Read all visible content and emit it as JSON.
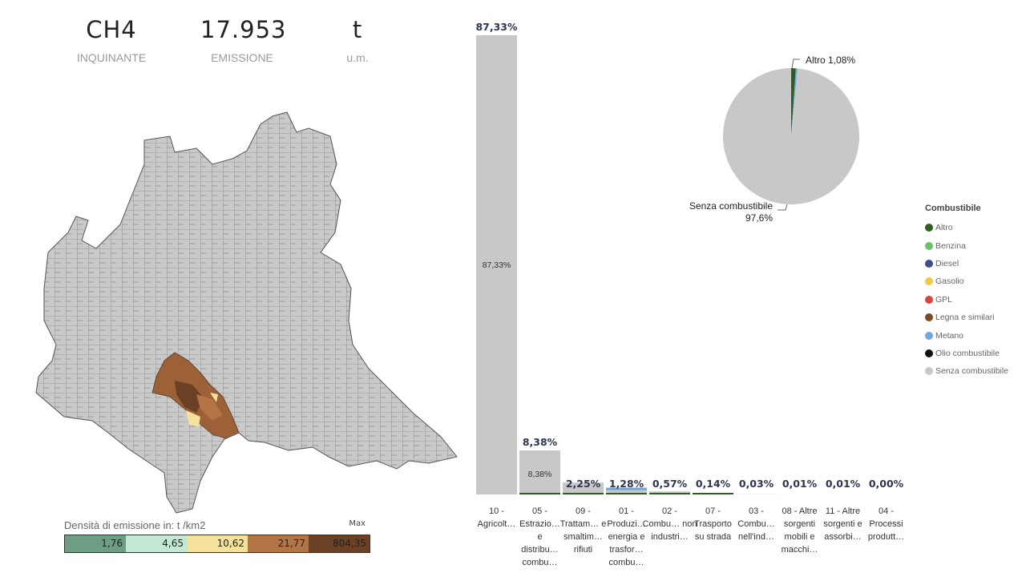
{
  "kpis": {
    "pollutant": {
      "value": "CH4",
      "label": "INQUINANTE"
    },
    "emission": {
      "value": "17.953",
      "label": "EMISSIONE"
    },
    "unit": {
      "value": "t",
      "label": "u.m."
    }
  },
  "map_legend": {
    "title": "Densità di emissione in:  t /km2",
    "max_label": "Max",
    "classes": [
      {
        "value": "1,76",
        "color": "#6d9e83"
      },
      {
        "value": "4,65",
        "color": "#c4e8d4"
      },
      {
        "value": "10,62",
        "color": "#f4e19c"
      },
      {
        "value": "21,77",
        "color": "#b47546"
      },
      {
        "value": "804,35",
        "color": "#6b4126"
      }
    ]
  },
  "chart_data": [
    {
      "type": "bar",
      "categories": [
        "10 - Agricolt…",
        "05 - Estrazio… e distribu… combu…",
        "09 - Trattam… e smaltim… rifiuti",
        "01 - Produzi… energia e trasfor… combu…",
        "02 - Combu… non industri…",
        "07 - Trasporto su strada",
        "03 - Combu… nell'ind…",
        "08 - Altre sorgenti mobili e macchi…",
        "11 - Altre sorgenti e assorbi…",
        "04 - Processi produtt…"
      ],
      "values": [
        87.33,
        8.38,
        2.25,
        1.28,
        0.57,
        0.14,
        0.03,
        0.01,
        0.01,
        0.0
      ],
      "data_labels": [
        "87,33%",
        "8,38%",
        "2,25%",
        "1,28%",
        "0,57%",
        "0,14%",
        "0,03%",
        "0,01%",
        "0,01%",
        "0,00%"
      ],
      "inner_labels": [
        "87,33%",
        "8,38%",
        "",
        "",
        "",
        "",
        "",
        "",
        "",
        ""
      ],
      "ylim": [
        0,
        87.33
      ],
      "grid": false
    },
    {
      "type": "pie",
      "labels": [
        "Altro",
        "Metano",
        "Senza combustibile"
      ],
      "values": [
        1.08,
        0.4,
        97.6
      ],
      "colors": [
        "#2e5e24",
        "#6fa8dc",
        "#c8c8c8"
      ],
      "data_labels": [
        {
          "text": "Altro 1,08%"
        },
        {
          "text": "Senza combustibile"
        },
        {
          "text": "97,6%"
        }
      ]
    }
  ],
  "fuel_legend": {
    "title": "Combustibile",
    "items": [
      {
        "label": "Altro",
        "color": "#2e5e24"
      },
      {
        "label": "Benzina",
        "color": "#6abf69"
      },
      {
        "label": "Diesel",
        "color": "#3f4f8c"
      },
      {
        "label": "Gasolio",
        "color": "#f0c94a"
      },
      {
        "label": "GPL",
        "color": "#d9443c"
      },
      {
        "label": "Legna e similari",
        "color": "#7a4b28"
      },
      {
        "label": "Metano",
        "color": "#6fa8dc"
      },
      {
        "label": "Olio combustibile",
        "color": "#111111"
      },
      {
        "label": "Senza combustibile",
        "color": "#c8c8c8"
      }
    ]
  }
}
